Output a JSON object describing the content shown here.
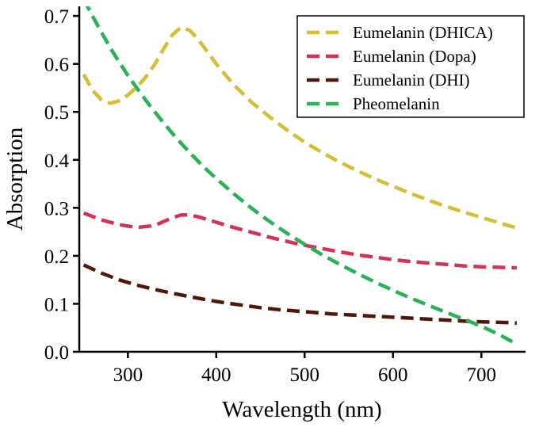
{
  "figure": {
    "background": "#ffffff",
    "text_color": "#000000"
  },
  "chart_data": {
    "type": "line",
    "title": "",
    "xlabel": "Wavelength (nm)",
    "ylabel": "Absorption",
    "xlim": [
      245,
      750
    ],
    "ylim": [
      0,
      0.72
    ],
    "xticks": [
      300,
      400,
      500,
      600,
      700
    ],
    "yticks": [
      0.0,
      0.1,
      0.2,
      0.3,
      0.4,
      0.5,
      0.6,
      0.7
    ],
    "grid": false,
    "line_style": "dashed",
    "legend": {
      "position": "upper right"
    },
    "series": [
      {
        "name": "Eumelanin (DHICA)",
        "color": "#d4be35",
        "x": [
          250,
          260,
          270,
          280,
          290,
          300,
          310,
          320,
          330,
          340,
          350,
          360,
          370,
          380,
          390,
          400,
          420,
          440,
          460,
          480,
          500,
          520,
          540,
          560,
          580,
          600,
          620,
          640,
          660,
          680,
          700,
          720,
          740
        ],
        "y": [
          0.578,
          0.545,
          0.525,
          0.518,
          0.523,
          0.535,
          0.551,
          0.572,
          0.598,
          0.63,
          0.66,
          0.676,
          0.67,
          0.65,
          0.625,
          0.6,
          0.556,
          0.52,
          0.49,
          0.462,
          0.437,
          0.415,
          0.395,
          0.377,
          0.36,
          0.345,
          0.33,
          0.316,
          0.303,
          0.291,
          0.28,
          0.269,
          0.258
        ]
      },
      {
        "name": "Eumelanin (Dopa)",
        "color": "#d23456",
        "x": [
          250,
          270,
          290,
          310,
          330,
          350,
          360,
          370,
          380,
          400,
          420,
          440,
          460,
          480,
          500,
          520,
          540,
          560,
          580,
          600,
          620,
          640,
          660,
          680,
          700,
          720,
          740
        ],
        "y": [
          0.289,
          0.275,
          0.265,
          0.259,
          0.263,
          0.279,
          0.285,
          0.285,
          0.281,
          0.27,
          0.259,
          0.249,
          0.239,
          0.23,
          0.222,
          0.215,
          0.208,
          0.202,
          0.197,
          0.192,
          0.188,
          0.185,
          0.182,
          0.179,
          0.177,
          0.176,
          0.175
        ]
      },
      {
        "name": "Eumelanin (DHI)",
        "color": "#4f170a",
        "x": [
          250,
          270,
          290,
          310,
          330,
          350,
          370,
          390,
          410,
          430,
          450,
          470,
          490,
          510,
          530,
          550,
          570,
          590,
          610,
          630,
          650,
          670,
          690,
          710,
          730,
          740
        ],
        "y": [
          0.181,
          0.164,
          0.15,
          0.139,
          0.13,
          0.122,
          0.115,
          0.108,
          0.102,
          0.097,
          0.092,
          0.088,
          0.085,
          0.082,
          0.079,
          0.077,
          0.075,
          0.073,
          0.071,
          0.069,
          0.067,
          0.065,
          0.063,
          0.062,
          0.061,
          0.06
        ]
      },
      {
        "name": "Pheomelanin",
        "color": "#28b255",
        "x": [
          250,
          260,
          270,
          280,
          290,
          300,
          310,
          320,
          330,
          340,
          350,
          360,
          370,
          380,
          390,
          400,
          420,
          440,
          460,
          480,
          500,
          520,
          540,
          560,
          580,
          600,
          620,
          640,
          660,
          680,
          700,
          720,
          740
        ],
        "y": [
          0.735,
          0.7,
          0.666,
          0.634,
          0.604,
          0.576,
          0.55,
          0.525,
          0.501,
          0.478,
          0.456,
          0.435,
          0.415,
          0.396,
          0.378,
          0.361,
          0.329,
          0.299,
          0.272,
          0.247,
          0.224,
          0.202,
          0.182,
          0.163,
          0.145,
          0.128,
          0.112,
          0.097,
          0.082,
          0.068,
          0.053,
          0.036,
          0.016
        ]
      }
    ]
  }
}
